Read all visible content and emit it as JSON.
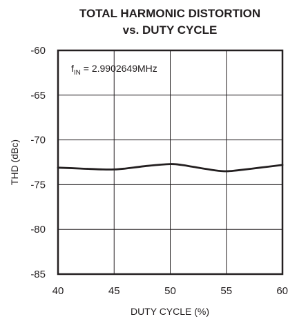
{
  "chart_data": {
    "type": "line",
    "title": "TOTAL HARMONIC DISTORTION",
    "subtitle": "vs. DUTY CYCLE",
    "xlabel": "DUTY CYCLE (%)",
    "ylabel": "THD (dBc)",
    "xlim": [
      40,
      60
    ],
    "ylim": [
      -85,
      -60
    ],
    "x_ticks": [
      "40",
      "45",
      "50",
      "55",
      "60"
    ],
    "y_ticks": [
      "-60",
      "-65",
      "-70",
      "-75",
      "-80",
      "-85"
    ],
    "grid": true,
    "annotation": {
      "main": "f",
      "sub": "IN",
      "rest": " = 2.9902649MHz"
    },
    "series": [
      {
        "color": "#231f20",
        "x": [
          40,
          42,
          44,
          45,
          46,
          48,
          50,
          51,
          52,
          54,
          55,
          56,
          58,
          60
        ],
        "y": [
          -73.1,
          -73.2,
          -73.3,
          -73.3,
          -73.2,
          -72.9,
          -72.7,
          -72.8,
          -73.0,
          -73.4,
          -73.5,
          -73.4,
          -73.1,
          -72.8
        ]
      }
    ]
  }
}
